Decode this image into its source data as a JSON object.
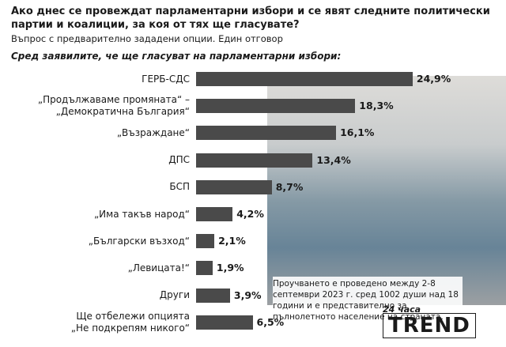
{
  "chart_data": {
    "type": "bar",
    "orientation": "horizontal",
    "title": "Ако днес се провеждат парламентарни избори и се явят следните политически партии и коалиции, за коя от тях ще гласувате?",
    "subtitle": "Въпрос с предварително зададени опции. Един отговор",
    "annotation": "Сред заявилите, че ще гласуват на парламентарни избори:",
    "categories": [
      "ГЕРБ-СДС",
      "„Продължаваме промяната“ –\n„Демократична България“",
      "„Възраждане“",
      "ДПС",
      "БСП",
      "„Има такъв народ“",
      "„Български възход“",
      "„Левицата!“",
      "Други",
      "Ще отбележи опцията\n„Не подкрепям никого“"
    ],
    "values": [
      24.9,
      18.3,
      16.1,
      13.4,
      8.7,
      4.2,
      2.1,
      1.9,
      3.9,
      6.5
    ],
    "value_labels": [
      "24,9%",
      "18,3%",
      "16,1%",
      "13,4%",
      "8,7%",
      "4,2%",
      "2,1%",
      "1,9%",
      "3,9%",
      "6,5%"
    ],
    "color": "#4a4a4a",
    "xlim": [
      0,
      25
    ],
    "note": "Проучването е проведено между 2-8 септември 2023 г. сред 1002 души над 18 години и е представително за пълнолетното население на страната.",
    "logo": [
      "24 часа",
      "TREND"
    ]
  }
}
